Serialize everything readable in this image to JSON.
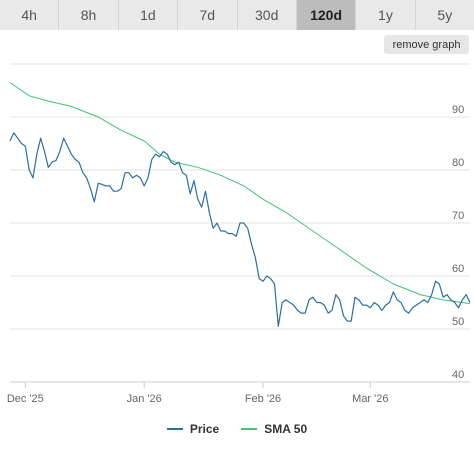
{
  "tabs": [
    {
      "label": "4h",
      "active": false
    },
    {
      "label": "8h",
      "active": false
    },
    {
      "label": "1d",
      "active": false
    },
    {
      "label": "7d",
      "active": false
    },
    {
      "label": "30d",
      "active": false
    },
    {
      "label": "120d",
      "active": true
    },
    {
      "label": "1y",
      "active": false
    },
    {
      "label": "5y",
      "active": false
    }
  ],
  "remove_graph_label": "remove graph",
  "chart_data": {
    "type": "line",
    "x_range": [
      "2025-11-27",
      "2026-03-27"
    ],
    "x_tick_labels": [
      {
        "label": "Dec '25",
        "date": "2025-12-01"
      },
      {
        "label": "Jan '26",
        "date": "2026-01-01"
      },
      {
        "label": "Feb '26",
        "date": "2026-02-01"
      },
      {
        "label": "Mar '26",
        "date": "2026-03-01"
      }
    ],
    "y_ticks": [
      40,
      50,
      60,
      70,
      80,
      90
    ],
    "ylim": [
      40,
      100
    ],
    "grid": true,
    "legend_position": "bottom",
    "series": [
      {
        "name": "Price",
        "color": "#2b6ea8",
        "points": [
          [
            "2025-11-27",
            85.5
          ],
          [
            "2025-11-28",
            87.0
          ],
          [
            "2025-11-29",
            86.0
          ],
          [
            "2025-11-30",
            85.0
          ],
          [
            "2025-12-01",
            84.5
          ],
          [
            "2025-12-02",
            80.0
          ],
          [
            "2025-12-03",
            78.5
          ],
          [
            "2025-12-04",
            83.0
          ],
          [
            "2025-12-05",
            86.0
          ],
          [
            "2025-12-06",
            83.5
          ],
          [
            "2025-12-07",
            80.5
          ],
          [
            "2025-12-08",
            81.5
          ],
          [
            "2025-12-09",
            81.8
          ],
          [
            "2025-12-10",
            83.5
          ],
          [
            "2025-12-11",
            86.0
          ],
          [
            "2025-12-12",
            84.5
          ],
          [
            "2025-12-13",
            83.0
          ],
          [
            "2025-12-14",
            82.0
          ],
          [
            "2025-12-15",
            81.5
          ],
          [
            "2025-12-16",
            79.5
          ],
          [
            "2025-12-17",
            78.5
          ],
          [
            "2025-12-18",
            76.5
          ],
          [
            "2025-12-19",
            74.0
          ],
          [
            "2025-12-20",
            77.5
          ],
          [
            "2025-12-21",
            77.3
          ],
          [
            "2025-12-22",
            77.0
          ],
          [
            "2025-12-23",
            77.0
          ],
          [
            "2025-12-24",
            76.0
          ],
          [
            "2025-12-25",
            76.0
          ],
          [
            "2025-12-26",
            76.5
          ],
          [
            "2025-12-27",
            79.5
          ],
          [
            "2025-12-28",
            79.5
          ],
          [
            "2025-12-29",
            78.5
          ],
          [
            "2025-12-30",
            79.0
          ],
          [
            "2025-12-31",
            78.5
          ],
          [
            "2026-01-01",
            77.0
          ],
          [
            "2026-01-02",
            78.5
          ],
          [
            "2026-01-03",
            82.0
          ],
          [
            "2026-01-04",
            83.0
          ],
          [
            "2026-01-05",
            82.5
          ],
          [
            "2026-01-06",
            83.5
          ],
          [
            "2026-01-07",
            83.0
          ],
          [
            "2026-01-08",
            81.5
          ],
          [
            "2026-01-09",
            81.0
          ],
          [
            "2026-01-10",
            81.5
          ],
          [
            "2026-01-11",
            79.5
          ],
          [
            "2026-01-12",
            79.0
          ],
          [
            "2026-01-13",
            75.5
          ],
          [
            "2026-01-14",
            78.0
          ],
          [
            "2026-01-15",
            74.5
          ],
          [
            "2026-01-16",
            73.0
          ],
          [
            "2026-01-17",
            76.0
          ],
          [
            "2026-01-18",
            72.0
          ],
          [
            "2026-01-19",
            69.0
          ],
          [
            "2026-01-20",
            70.0
          ],
          [
            "2026-01-21",
            68.5
          ],
          [
            "2026-01-22",
            68.5
          ],
          [
            "2026-01-23",
            68.0
          ],
          [
            "2026-01-24",
            68.0
          ],
          [
            "2026-01-25",
            67.5
          ],
          [
            "2026-01-26",
            70.0
          ],
          [
            "2026-01-27",
            70.0
          ],
          [
            "2026-01-28",
            69.0
          ],
          [
            "2026-01-29",
            66.0
          ],
          [
            "2026-01-30",
            63.5
          ],
          [
            "2026-01-31",
            59.5
          ],
          [
            "2026-02-01",
            59.0
          ],
          [
            "2026-02-02",
            60.0
          ],
          [
            "2026-02-03",
            59.5
          ],
          [
            "2026-02-04",
            58.5
          ],
          [
            "2026-02-05",
            50.5
          ],
          [
            "2026-02-06",
            55.0
          ],
          [
            "2026-02-07",
            55.5
          ],
          [
            "2026-02-08",
            55.0
          ],
          [
            "2026-02-09",
            54.5
          ],
          [
            "2026-02-10",
            53.5
          ],
          [
            "2026-02-11",
            53.0
          ],
          [
            "2026-02-12",
            53.0
          ],
          [
            "2026-02-13",
            55.5
          ],
          [
            "2026-02-14",
            56.0
          ],
          [
            "2026-02-15",
            55.0
          ],
          [
            "2026-02-16",
            55.0
          ],
          [
            "2026-02-17",
            54.5
          ],
          [
            "2026-02-18",
            53.0
          ],
          [
            "2026-02-19",
            53.5
          ],
          [
            "2026-02-20",
            56.5
          ],
          [
            "2026-02-21",
            55.5
          ],
          [
            "2026-02-22",
            52.5
          ],
          [
            "2026-02-23",
            51.5
          ],
          [
            "2026-02-24",
            51.5
          ],
          [
            "2026-02-25",
            56.0
          ],
          [
            "2026-02-26",
            55.5
          ],
          [
            "2026-02-27",
            54.5
          ],
          [
            "2026-02-28",
            54.5
          ],
          [
            "2026-03-01",
            54.0
          ],
          [
            "2026-03-02",
            55.0
          ],
          [
            "2026-03-03",
            54.5
          ],
          [
            "2026-03-04",
            53.5
          ],
          [
            "2026-03-05",
            54.5
          ],
          [
            "2026-03-06",
            55.0
          ],
          [
            "2026-03-07",
            57.0
          ],
          [
            "2026-03-08",
            55.5
          ],
          [
            "2026-03-09",
            55.0
          ],
          [
            "2026-03-10",
            53.5
          ],
          [
            "2026-03-11",
            53.0
          ],
          [
            "2026-03-12",
            54.0
          ],
          [
            "2026-03-13",
            54.5
          ],
          [
            "2026-03-14",
            55.0
          ],
          [
            "2026-03-15",
            55.5
          ],
          [
            "2026-03-16",
            55.0
          ],
          [
            "2026-03-17",
            56.5
          ],
          [
            "2026-03-18",
            59.0
          ],
          [
            "2026-03-19",
            58.5
          ],
          [
            "2026-03-20",
            56.0
          ],
          [
            "2026-03-21",
            56.5
          ],
          [
            "2026-03-22",
            55.5
          ],
          [
            "2026-03-23",
            55.0
          ],
          [
            "2026-03-24",
            54.0
          ],
          [
            "2026-03-25",
            55.5
          ],
          [
            "2026-03-26",
            56.5
          ],
          [
            "2026-03-27",
            55.0
          ]
        ]
      },
      {
        "name": "SMA 50",
        "color": "#3ec476",
        "points": [
          [
            "2025-11-27",
            96.5
          ],
          [
            "2025-12-02",
            94.0
          ],
          [
            "2025-12-07",
            93.0
          ],
          [
            "2025-12-13",
            92.0
          ],
          [
            "2025-12-20",
            90.0
          ],
          [
            "2025-12-26",
            87.5
          ],
          [
            "2026-01-01",
            85.5
          ],
          [
            "2026-01-05",
            83.0
          ],
          [
            "2026-01-09",
            81.5
          ],
          [
            "2026-01-15",
            80.5
          ],
          [
            "2026-01-21",
            79.0
          ],
          [
            "2026-01-27",
            77.0
          ],
          [
            "2026-02-01",
            74.5
          ],
          [
            "2026-02-07",
            72.0
          ],
          [
            "2026-02-14",
            68.5
          ],
          [
            "2026-02-21",
            65.0
          ],
          [
            "2026-02-28",
            61.5
          ],
          [
            "2026-03-07",
            58.5
          ],
          [
            "2026-03-14",
            56.5
          ],
          [
            "2026-03-20",
            55.5
          ],
          [
            "2026-03-27",
            54.8
          ]
        ]
      }
    ]
  }
}
